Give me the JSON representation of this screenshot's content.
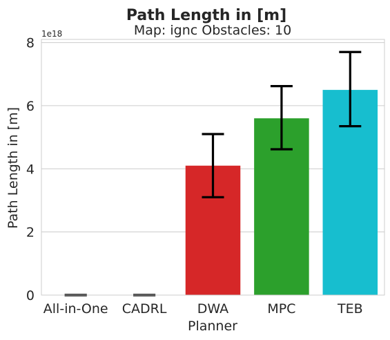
{
  "chart_data": {
    "type": "bar",
    "title": "Path Length in [m]",
    "subtitle": "Map: ignc Obstacles: 10",
    "xlabel": "Planner",
    "ylabel": "Path Length in [m]",
    "y_offset_label": "1e18",
    "y_scale": 1e+18,
    "ylim": [
      0,
      8.1
    ],
    "yticks": [
      0,
      2,
      4,
      6,
      8
    ],
    "grid": true,
    "categories": [
      "All-in-One",
      "CADRL",
      "DWA",
      "MPC",
      "TEB"
    ],
    "values": [
      0.0,
      0.0,
      4.1,
      5.6,
      6.5
    ],
    "error_low": [
      0.0,
      0.0,
      3.1,
      4.62,
      5.35
    ],
    "error_high": [
      0.0,
      0.0,
      5.1,
      6.62,
      7.7
    ],
    "colors": [
      "#1f77b4",
      "#ff7f0e",
      "#d62728",
      "#2ca02c",
      "#17becf"
    ]
  }
}
